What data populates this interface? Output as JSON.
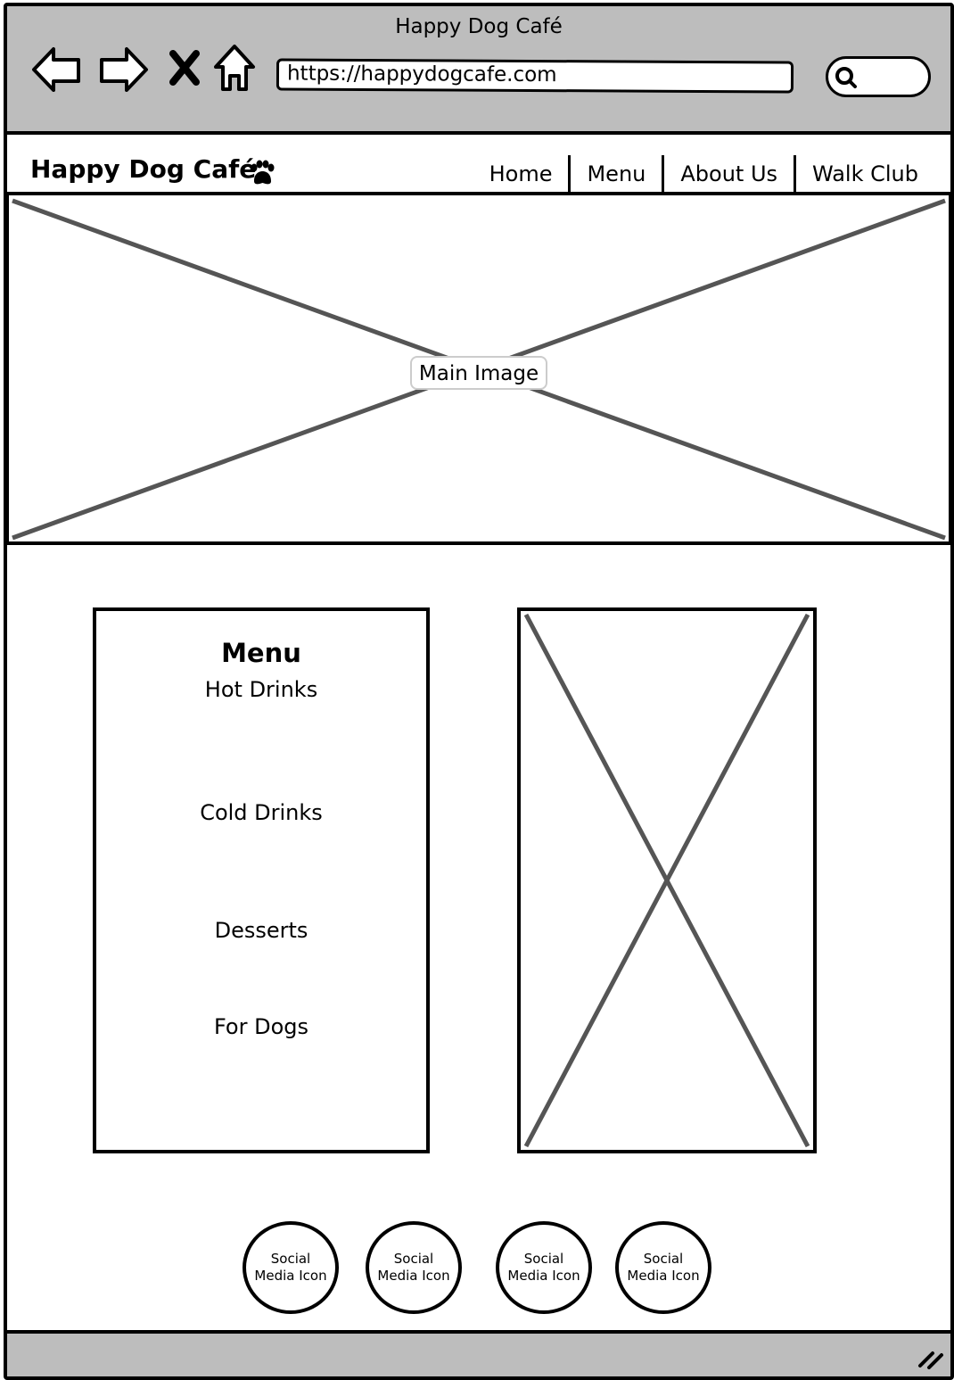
{
  "browser": {
    "window_title": "Happy Dog Café",
    "url": "https://happydogcafe.com",
    "icons": [
      "back-arrow-icon",
      "forward-arrow-icon",
      "close-icon",
      "home-icon",
      "search-icon"
    ]
  },
  "site": {
    "brand": "Happy Dog Café",
    "brand_icon": "paw-icon",
    "nav": [
      "Home",
      "Menu",
      "About Us",
      "Walk Club"
    ]
  },
  "hero": {
    "label": "Main Image"
  },
  "menu": {
    "title": "Menu",
    "items": [
      "Hot Drinks",
      "Cold Drinks",
      "Desserts",
      "For Dogs"
    ]
  },
  "social": {
    "icons": [
      "Social Media Icon",
      "Social Media Icon",
      "Social Media Icon",
      "Social Media Icon"
    ]
  },
  "footer": {
    "icon": "resize-grip-icon"
  }
}
